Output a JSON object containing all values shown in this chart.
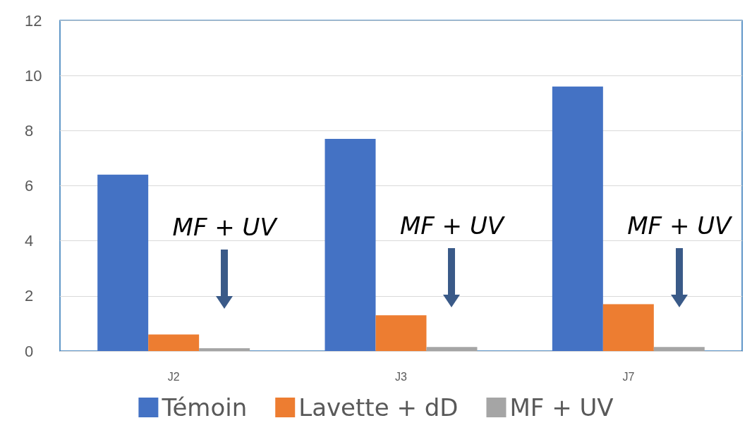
{
  "chart_data": {
    "type": "bar",
    "categories": [
      "J2",
      "J3",
      "J7"
    ],
    "series": [
      {
        "name": "Témoin",
        "color": "#4472c4",
        "values": [
          6.4,
          7.7,
          9.6
        ]
      },
      {
        "name": "Lavette + dD",
        "color": "#ed7d31",
        "values": [
          0.6,
          1.3,
          1.7
        ]
      },
      {
        "name": "MF + UV",
        "color": "#a5a5a5",
        "values": [
          0.1,
          0.15,
          0.15
        ]
      }
    ],
    "ylim": [
      0,
      12
    ],
    "yticks": [
      0,
      2,
      4,
      6,
      8,
      10,
      12
    ],
    "grid": "y",
    "legend": "bottom",
    "annotations": [
      "MF + UV",
      "MF + UV",
      "MF + UV"
    ]
  }
}
